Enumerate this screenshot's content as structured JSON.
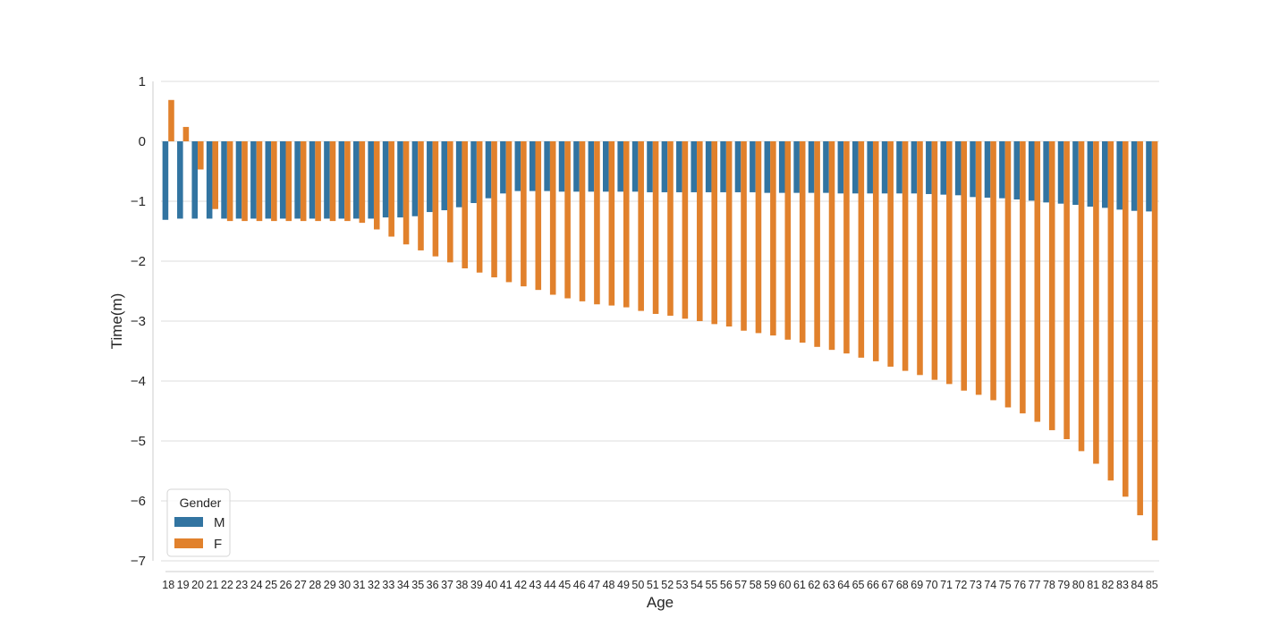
{
  "chart_data": {
    "type": "bar",
    "xlabel": "Age",
    "ylabel": "Time(m)",
    "ylim": [
      -7,
      1
    ],
    "yticks": [
      1,
      0,
      -1,
      -2,
      -3,
      -4,
      -5,
      -6,
      -7
    ],
    "grid": "horizontal",
    "legend": {
      "title": "Gender",
      "position": "bottom-left"
    },
    "categories": [
      "18",
      "19",
      "20",
      "21",
      "22",
      "23",
      "24",
      "25",
      "26",
      "27",
      "28",
      "29",
      "30",
      "31",
      "32",
      "33",
      "34",
      "35",
      "36",
      "37",
      "38",
      "39",
      "40",
      "41",
      "42",
      "43",
      "44",
      "45",
      "46",
      "47",
      "48",
      "49",
      "50",
      "51",
      "52",
      "53",
      "54",
      "55",
      "56",
      "57",
      "58",
      "59",
      "60",
      "61",
      "62",
      "63",
      "64",
      "65",
      "66",
      "67",
      "68",
      "69",
      "70",
      "71",
      "72",
      "73",
      "74",
      "75",
      "76",
      "77",
      "78",
      "79",
      "80",
      "81",
      "82",
      "83",
      "84",
      "85"
    ],
    "series": [
      {
        "name": "M",
        "color": "#3274a1",
        "values": [
          -1.31,
          -1.29,
          -1.29,
          -1.29,
          -1.29,
          -1.29,
          -1.29,
          -1.29,
          -1.29,
          -1.29,
          -1.29,
          -1.29,
          -1.29,
          -1.29,
          -1.29,
          -1.27,
          -1.27,
          -1.25,
          -1.18,
          -1.15,
          -1.1,
          -1.03,
          -0.95,
          -0.87,
          -0.83,
          -0.83,
          -0.83,
          -0.84,
          -0.84,
          -0.84,
          -0.84,
          -0.84,
          -0.84,
          -0.85,
          -0.85,
          -0.85,
          -0.85,
          -0.85,
          -0.85,
          -0.85,
          -0.85,
          -0.86,
          -0.86,
          -0.86,
          -0.86,
          -0.86,
          -0.87,
          -0.87,
          -0.87,
          -0.87,
          -0.87,
          -0.87,
          -0.88,
          -0.89,
          -0.9,
          -0.93,
          -0.94,
          -0.95,
          -0.97,
          -0.99,
          -1.02,
          -1.04,
          -1.06,
          -1.09,
          -1.11,
          -1.14,
          -1.16,
          -1.17
        ]
      },
      {
        "name": "F",
        "color": "#e1812c",
        "values": [
          0.69,
          0.24,
          -0.47,
          -1.13,
          -1.33,
          -1.33,
          -1.33,
          -1.33,
          -1.33,
          -1.33,
          -1.33,
          -1.33,
          -1.33,
          -1.36,
          -1.47,
          -1.59,
          -1.72,
          -1.82,
          -1.92,
          -2.02,
          -2.12,
          -2.19,
          -2.27,
          -2.35,
          -2.42,
          -2.48,
          -2.56,
          -2.62,
          -2.67,
          -2.72,
          -2.74,
          -2.77,
          -2.83,
          -2.88,
          -2.91,
          -2.96,
          -3.0,
          -3.05,
          -3.09,
          -3.16,
          -3.2,
          -3.24,
          -3.31,
          -3.36,
          -3.43,
          -3.48,
          -3.54,
          -3.61,
          -3.67,
          -3.76,
          -3.83,
          -3.9,
          -3.98,
          -4.05,
          -4.16,
          -4.23,
          -4.32,
          -4.44,
          -4.54,
          -4.68,
          -4.82,
          -4.97,
          -5.17,
          -5.38,
          -5.66,
          -5.93,
          -6.24,
          -6.66
        ]
      }
    ]
  }
}
